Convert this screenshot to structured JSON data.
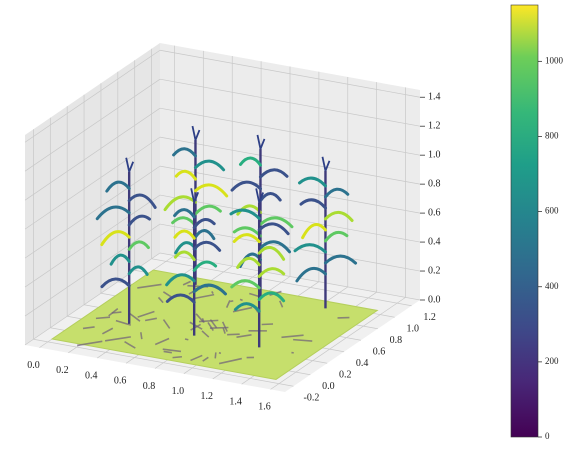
{
  "chart_data": {
    "type": "surface3d",
    "xlim": [
      -0.1,
      1.7
    ],
    "ylim": [
      -0.3,
      1.3
    ],
    "zlim": [
      0,
      1.45
    ],
    "xticks": [
      {
        "value": 0,
        "label": "0.0"
      },
      {
        "value": 0.2,
        "label": "0.2"
      },
      {
        "value": 0.4,
        "label": "0.4"
      },
      {
        "value": 0.6,
        "label": "0.6"
      },
      {
        "value": 0.8,
        "label": "0.8"
      },
      {
        "value": 1.0,
        "label": "1.0"
      },
      {
        "value": 1.2,
        "label": "1.2"
      },
      {
        "value": 1.4,
        "label": "1.4"
      },
      {
        "value": 1.6,
        "label": "1.6"
      }
    ],
    "yticks": [
      -0.2,
      {
        "value": 0,
        "label": "0.0"
      },
      0.2,
      0.4,
      0.6,
      0.8,
      {
        "value": 1.0,
        "label": "1.0"
      },
      1.2
    ],
    "zticks": [
      {
        "value": 0,
        "label": "0.0"
      },
      0.2,
      0.4,
      0.6,
      0.8,
      {
        "value": 1.0,
        "label": "1.0"
      },
      1.2,
      1.4
    ],
    "colorbar": {
      "cmap": "viridis",
      "clim": [
        0,
        1150
      ],
      "ticks": [
        0,
        200,
        400,
        600,
        800,
        1000
      ]
    },
    "grid": true
  }
}
